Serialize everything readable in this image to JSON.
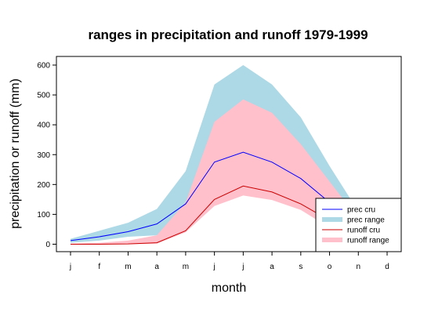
{
  "chart_data": {
    "type": "area",
    "title": "ranges in precipitation and runoff 1979-1999",
    "xlabel": "month",
    "ylabel": "precipitation or runoff (mm)",
    "categories": [
      "j",
      "f",
      "m",
      "a",
      "m",
      "j",
      "j",
      "a",
      "s",
      "o",
      "n",
      "d"
    ],
    "yticks": [
      0,
      100,
      200,
      300,
      400,
      500,
      600
    ],
    "ylim": [
      -20,
      630
    ],
    "grid": false,
    "legend_position": "bottom-right",
    "series": [
      {
        "name": "prec cru",
        "kind": "line",
        "color": "#0000ff",
        "values": [
          12,
          25,
          42,
          68,
          135,
          275,
          308,
          275,
          220,
          140,
          70,
          30
        ]
      },
      {
        "name": "prec range",
        "kind": "band",
        "color": "#add8e6",
        "lower": [
          5,
          12,
          25,
          30,
          45,
          130,
          165,
          150,
          120,
          70,
          30,
          12
        ],
        "upper": [
          18,
          45,
          72,
          118,
          245,
          535,
          600,
          535,
          425,
          262,
          110,
          45
        ]
      },
      {
        "name": "runoff cru",
        "kind": "line",
        "color": "#cc0000",
        "values": [
          0,
          0,
          1,
          5,
          45,
          150,
          195,
          175,
          135,
          80,
          30,
          8
        ]
      },
      {
        "name": "runoff range",
        "kind": "band",
        "color": "#ffc0cb",
        "lower": [
          0,
          0,
          0,
          2,
          40,
          128,
          163,
          148,
          115,
          55,
          20,
          5
        ],
        "upper": [
          2,
          5,
          12,
          30,
          140,
          410,
          485,
          440,
          335,
          210,
          85,
          20
        ]
      }
    ]
  }
}
